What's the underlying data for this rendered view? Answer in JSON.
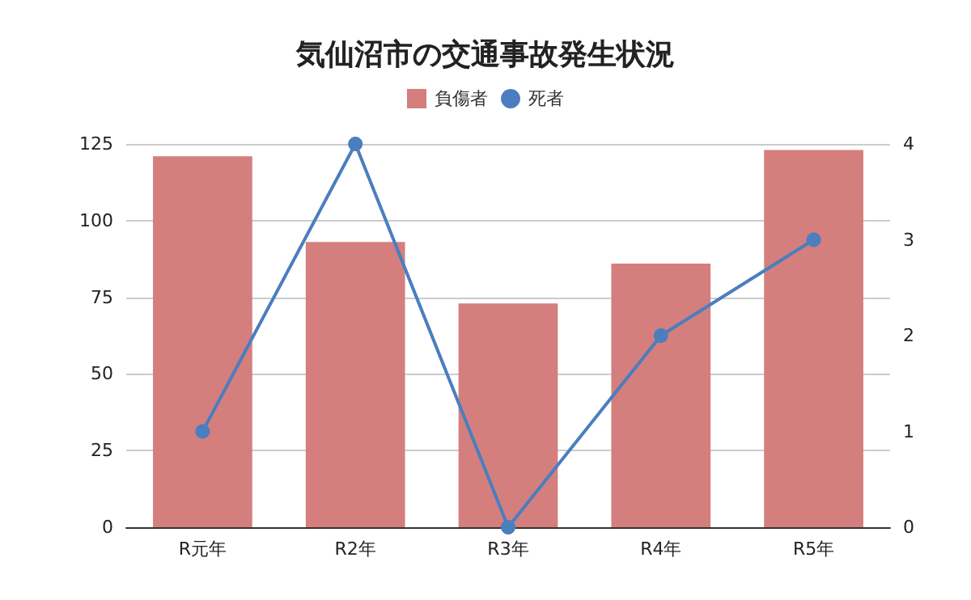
{
  "chart_data": {
    "type": "bar",
    "title": "気仙沼市の交通事故発生状況",
    "categories": [
      "R元年",
      "R2年",
      "R3年",
      "R4年",
      "R5年"
    ],
    "series": [
      {
        "name": "負傷者",
        "color": "#d47f7d",
        "values": [
          121,
          93,
          73,
          86,
          123
        ]
      },
      {
        "name": "死者",
        "type": "line",
        "axis": "y2",
        "color": "#4a7ebf",
        "values": [
          1,
          4,
          0,
          2,
          3
        ]
      }
    ],
    "ylim": [
      0,
      125
    ],
    "yticks": [
      0,
      25,
      50,
      75,
      100,
      125
    ],
    "y2lim": [
      0,
      4
    ],
    "y2ticks": [
      0,
      1,
      2,
      3,
      4
    ],
    "grid": "y",
    "legend": "top",
    "marker": "circle"
  }
}
